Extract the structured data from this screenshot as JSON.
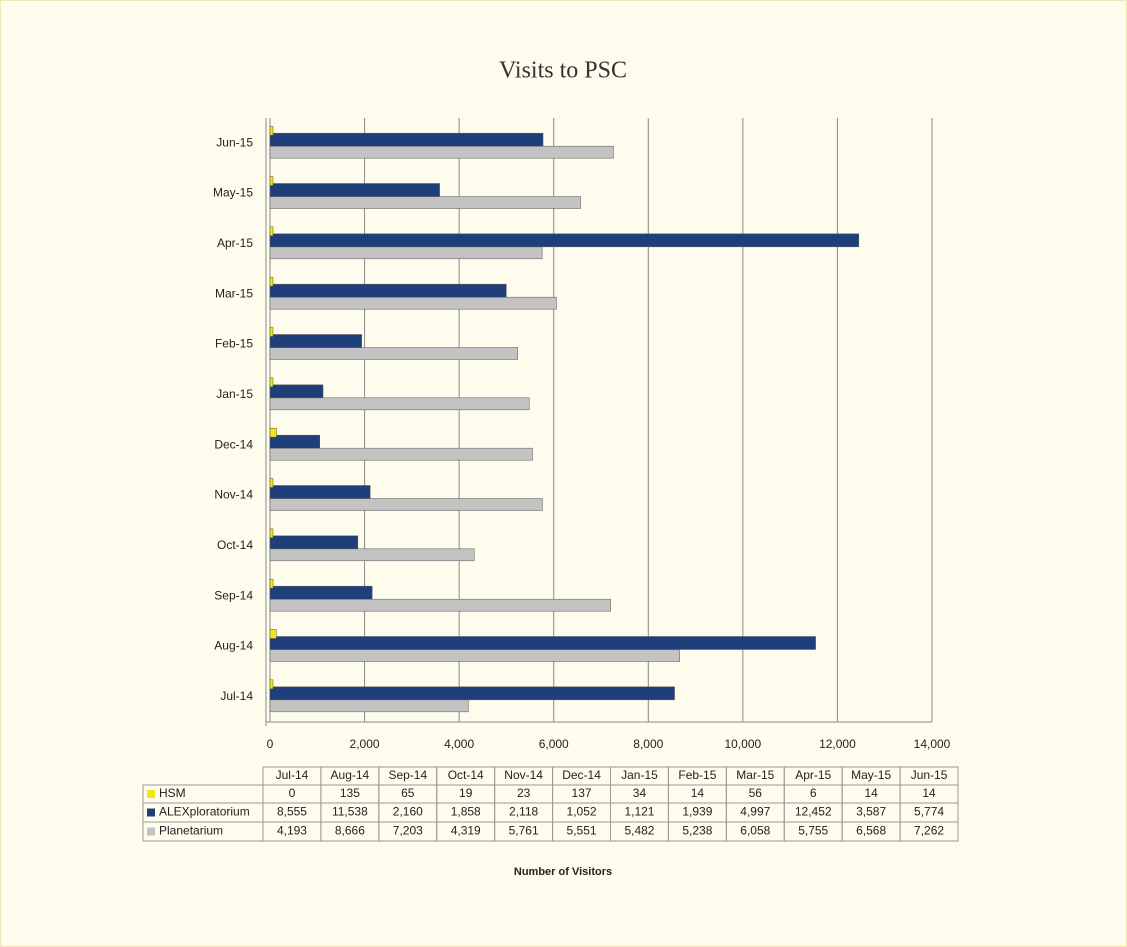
{
  "chart_data": {
    "type": "bar",
    "orientation": "horizontal",
    "title": "Visits to PSC",
    "x_label": "Number of Visitors",
    "categories": [
      "Jul-14",
      "Aug-14",
      "Sep-14",
      "Oct-14",
      "Nov-14",
      "Dec-14",
      "Jan-15",
      "Feb-15",
      "Mar-15",
      "Apr-15",
      "May-15",
      "Jun-15"
    ],
    "series": [
      {
        "name": "HSM",
        "color": "#f2e417",
        "values": [
          0,
          135,
          65,
          19,
          23,
          137,
          34,
          14,
          56,
          6,
          14,
          14
        ]
      },
      {
        "name": "ALEXploratorium",
        "color": "#1f3f7a",
        "values": [
          8555,
          11538,
          2160,
          1858,
          2118,
          1052,
          1121,
          1939,
          4997,
          12452,
          3587,
          5774
        ],
        "value_labels": [
          "8,555",
          "11,538",
          "2,160",
          "1,858",
          "2,118",
          "1,052",
          "1,121",
          "1,939",
          "4,997",
          "12,452",
          "3,587",
          "5,774"
        ]
      },
      {
        "name": "Planetarium",
        "color": "#c3c3c3",
        "values": [
          4193,
          8666,
          7203,
          4319,
          5761,
          5551,
          5482,
          5238,
          6058,
          5755,
          6568,
          7262
        ],
        "value_labels": [
          "4,193",
          "8,666",
          "7,203",
          "4,319",
          "5,761",
          "5,551",
          "5,482",
          "5,238",
          "6,058",
          "5,755",
          "6,568",
          "7,262"
        ]
      }
    ],
    "xlim": [
      0,
      14000
    ],
    "xticks": [
      0,
      {
        "value": 2000,
        "label": "2,000"
      },
      {
        "value": 4000,
        "label": "4,000"
      },
      {
        "value": 6000,
        "label": "6,000"
      },
      {
        "value": 8000,
        "label": "8,000"
      },
      {
        "value": 10000,
        "label": "10,000"
      },
      {
        "value": 12000,
        "label": "12,000"
      },
      {
        "value": 14000,
        "label": "14,000"
      }
    ],
    "grid": true
  }
}
